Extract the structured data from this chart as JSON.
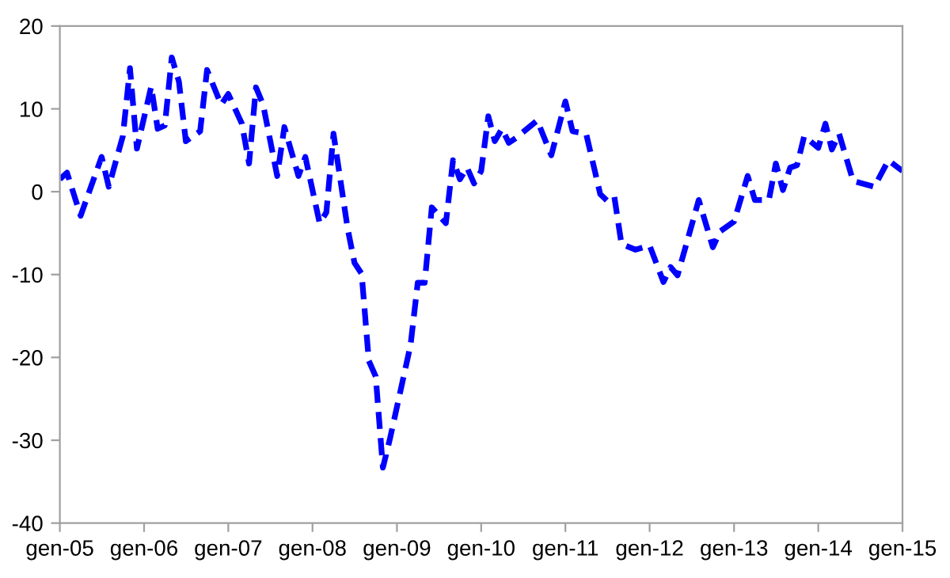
{
  "chart_data": {
    "type": "line",
    "x": [
      "2005-01",
      "2005-02",
      "2005-04",
      "2005-07",
      "2005-08",
      "2005-10",
      "2005-11",
      "2005-12",
      "2006-02",
      "2006-03",
      "2006-04",
      "2006-05",
      "2006-06",
      "2006-07",
      "2006-09",
      "2006-10",
      "2006-12",
      "2007-01",
      "2007-03",
      "2007-04",
      "2007-05",
      "2007-06",
      "2007-08",
      "2007-09",
      "2007-11",
      "2007-12",
      "2008-02",
      "2008-03",
      "2008-04",
      "2008-06",
      "2008-07",
      "2008-08",
      "2008-09",
      "2008-10",
      "2008-11",
      "2008-12",
      "2009-03",
      "2009-04",
      "2009-05",
      "2009-06",
      "2009-08",
      "2009-09",
      "2009-10",
      "2009-11",
      "2009-12",
      "2010-01",
      "2010-02",
      "2010-03",
      "2010-04",
      "2010-05",
      "2010-06",
      "2010-09",
      "2010-11",
      "2011-01",
      "2011-02",
      "2011-04",
      "2011-06",
      "2011-07",
      "2011-08",
      "2011-09",
      "2011-11",
      "2012-01",
      "2012-03",
      "2012-04",
      "2012-05",
      "2012-08",
      "2012-10",
      "2012-11",
      "2013-01",
      "2013-03",
      "2013-04",
      "2013-06",
      "2013-07",
      "2013-08",
      "2013-09",
      "2013-10",
      "2013-11",
      "2014-01",
      "2014-02",
      "2014-03",
      "2014-04",
      "2014-06",
      "2014-09",
      "2014-11",
      "2015-01"
    ],
    "series": [
      {
        "color": "#0000ff",
        "values": [
          1.5,
          2.3,
          -2.9,
          4.2,
          0.6,
          6.7,
          14.9,
          5.2,
          12.7,
          7.6,
          8,
          16.2,
          13.3,
          6.1,
          7.3,
          14.7,
          10.5,
          11.8,
          8.2,
          3.4,
          12.6,
          10.5,
          1.9,
          7.8,
          1.9,
          4.2,
          -3.8,
          -2.5,
          7,
          -4.4,
          -8.6,
          -9.9,
          -20.4,
          -22.3,
          -33.3,
          -29.9,
          -18.5,
          -11,
          -11,
          -1.9,
          -3.8,
          3.8,
          1.5,
          2.9,
          1,
          2.5,
          9.1,
          6.1,
          7.6,
          5.9,
          6.5,
          8.6,
          4.4,
          10.9,
          7.3,
          7,
          -0.3,
          -1.1,
          -0.6,
          -6.3,
          -7,
          -6.5,
          -10.9,
          -9.1,
          -10.1,
          -1,
          -6.7,
          -4.8,
          -3.6,
          1.9,
          -1,
          -1,
          3.4,
          0.2,
          2.9,
          3.2,
          6.7,
          5.3,
          8.2,
          5.1,
          7,
          1.3,
          0.6,
          3.8,
          2.5
        ]
      }
    ],
    "xlim": [
      "2005-01",
      "2015-01"
    ],
    "xticks": [
      {
        "value": "2005-01",
        "label": "gen-05"
      },
      {
        "value": "2006-01",
        "label": "gen-06"
      },
      {
        "value": "2007-01",
        "label": "gen-07"
      },
      {
        "value": "2008-01",
        "label": "gen-08"
      },
      {
        "value": "2009-01",
        "label": "gen-09"
      },
      {
        "value": "2010-01",
        "label": "gen-10"
      },
      {
        "value": "2011-01",
        "label": "gen-11"
      },
      {
        "value": "2012-01",
        "label": "gen-12"
      },
      {
        "value": "2013-01",
        "label": "gen-13"
      },
      {
        "value": "2014-01",
        "label": "gen-14"
      },
      {
        "value": "2015-01",
        "label": "gen-15"
      }
    ],
    "ylim": [
      -40,
      20
    ],
    "yticks": [
      -40,
      -30,
      -20,
      -10,
      0,
      10,
      20
    ],
    "grid": false,
    "legend": false,
    "marker": "none",
    "line_style": "dashed"
  }
}
